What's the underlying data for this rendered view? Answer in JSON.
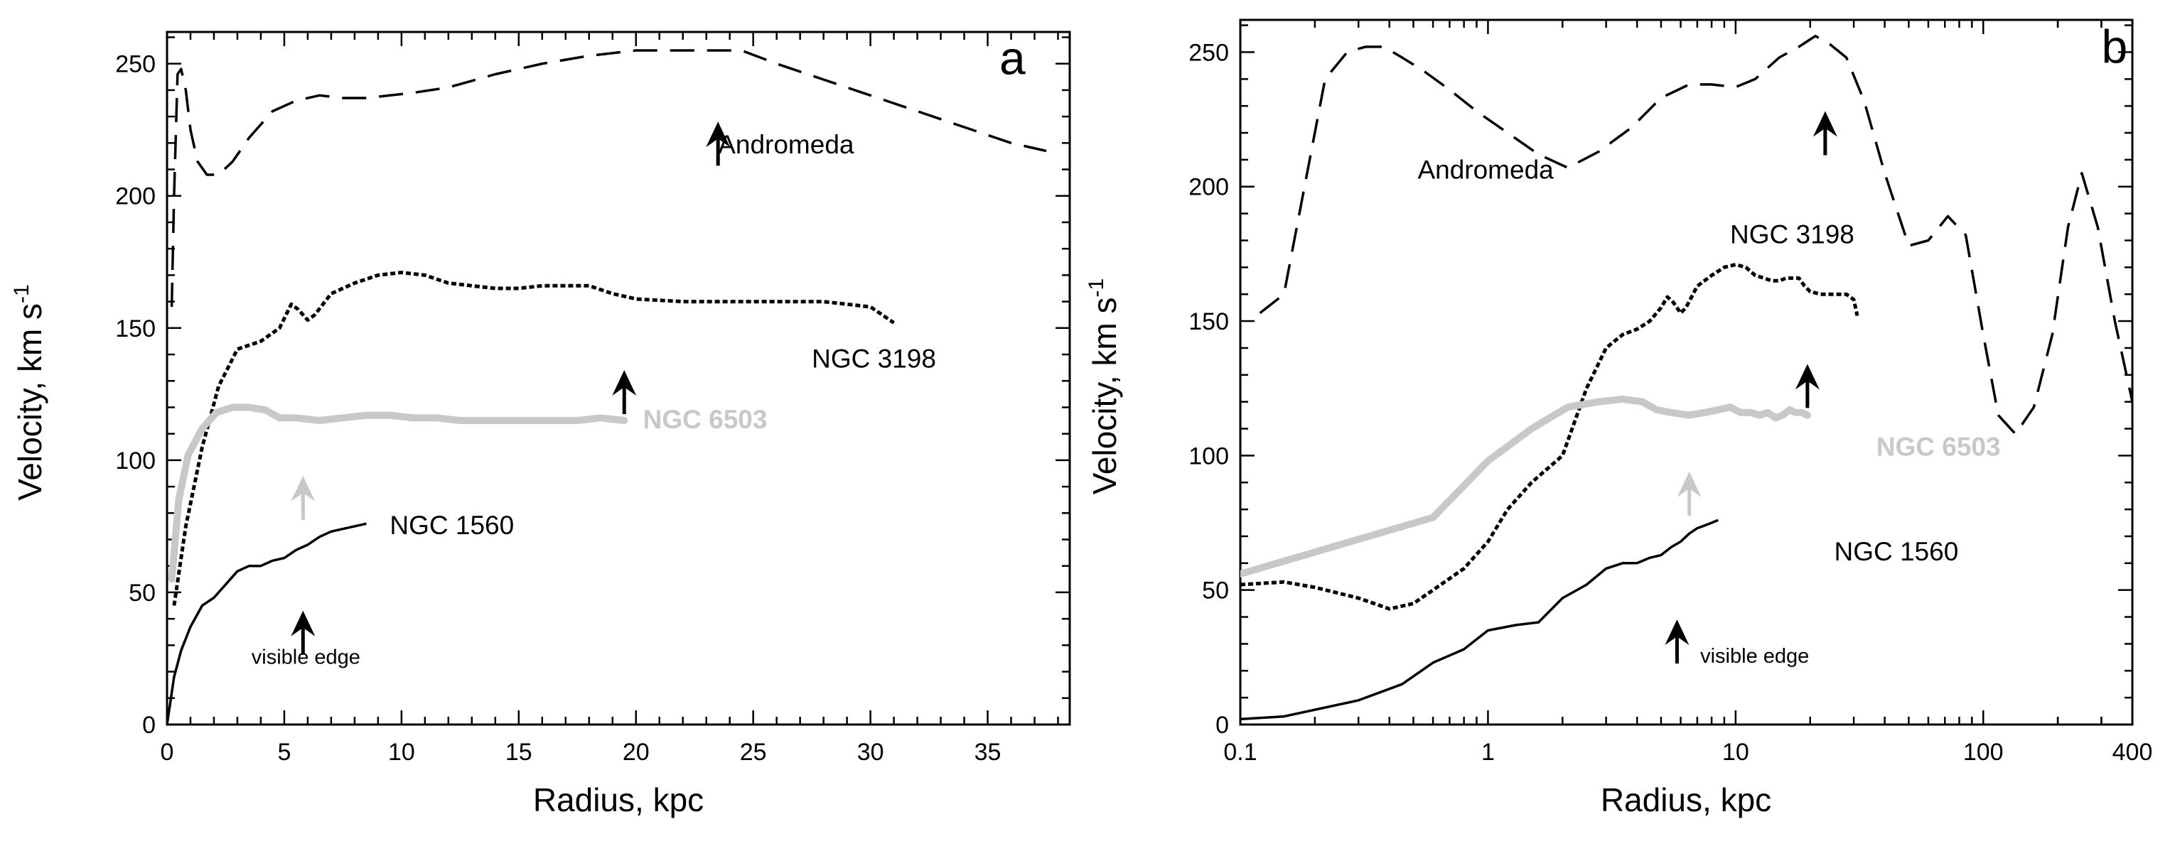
{
  "chart_data": [
    {
      "type": "line",
      "panel": "a",
      "xscale": "linear",
      "xlabel": "Radius, kpc",
      "ylabel": "Velocity, km s",
      "ylabel_sup": "-1",
      "xlim": [
        0,
        38.5
      ],
      "ylim": [
        0,
        262
      ],
      "x_ticks": [
        0,
        5,
        10,
        15,
        20,
        25,
        30,
        35
      ],
      "y_ticks": [
        0,
        50,
        100,
        150,
        200,
        250
      ],
      "series": [
        {
          "name": "Andromeda",
          "style": "dashed",
          "color": "#000000",
          "x": [
            0.2,
            0.3,
            0.45,
            0.6,
            0.8,
            1.0,
            1.3,
            1.7,
            2.2,
            2.8,
            3.5,
            4.5,
            5.5,
            6.5,
            7.5,
            8.5,
            9.5,
            10.5,
            12,
            14,
            16,
            18,
            20,
            21.5,
            23,
            24.5,
            26,
            28,
            30,
            32,
            34,
            36,
            37.5
          ],
          "y": [
            158,
            200,
            246,
            248,
            240,
            225,
            213,
            208,
            208,
            213,
            222,
            232,
            236,
            238,
            237,
            237,
            238,
            239,
            241,
            246,
            250,
            253,
            255,
            255,
            255,
            255,
            250,
            244,
            238,
            232,
            226,
            220,
            217
          ]
        },
        {
          "name": "NGC 3198",
          "style": "dotted",
          "color": "#000000",
          "x": [
            0.3,
            0.8,
            1.5,
            2.2,
            3.0,
            4.0,
            4.8,
            5.3,
            5.6,
            6.0,
            6.3,
            7.0,
            8.0,
            9.0,
            10,
            11,
            12,
            13,
            14,
            15,
            16,
            17,
            18,
            19,
            20,
            22,
            24,
            26,
            28,
            30,
            31
          ],
          "y": [
            45,
            75,
            105,
            128,
            142,
            145,
            150,
            159,
            157,
            153,
            155,
            163,
            167,
            170,
            171,
            170,
            167,
            166,
            165,
            165,
            166,
            166,
            166,
            163,
            161,
            160,
            160,
            160,
            160,
            158,
            152
          ]
        },
        {
          "name": "NGC 6503",
          "style": "solid-thick",
          "color": "#c8c8c8",
          "x": [
            0.2,
            0.5,
            0.9,
            1.5,
            2.1,
            2.8,
            3.5,
            4.2,
            4.8,
            5.5,
            6.5,
            7.5,
            8.5,
            9.5,
            10.5,
            11.5,
            12.5,
            13.5,
            14.5,
            15.5,
            16.5,
            17.5,
            18.5,
            19.5
          ],
          "y": [
            55,
            85,
            102,
            112,
            118,
            120,
            120,
            119,
            116,
            116,
            115,
            116,
            117,
            117,
            116,
            116,
            115,
            115,
            115,
            115,
            115,
            115,
            116,
            115
          ]
        },
        {
          "name": "NGC 1560",
          "style": "solid",
          "color": "#000000",
          "x": [
            0,
            0.3,
            0.6,
            1.0,
            1.5,
            2.0,
            2.5,
            3.0,
            3.5,
            4.0,
            4.5,
            5.0,
            5.5,
            6.0,
            6.5,
            7.0,
            7.5,
            8.0,
            8.5
          ],
          "y": [
            0,
            18,
            28,
            37,
            45,
            48,
            53,
            58,
            60,
            60,
            62,
            63,
            66,
            68,
            71,
            73,
            74,
            75,
            76
          ]
        }
      ],
      "arrows": [
        {
          "x": 23.5,
          "y": 227,
          "color": "#000000"
        },
        {
          "x": 19.5,
          "y": 133,
          "color": "#000000"
        },
        {
          "x": 5.8,
          "y": 93,
          "color": "#c8c8c8"
        },
        {
          "x": 5.8,
          "y": 42,
          "color": "#000000"
        }
      ],
      "annotations": [
        {
          "text": "Andromeda",
          "x": 23.5,
          "y": 216
        },
        {
          "text": "NGC 3198",
          "x": 27.5,
          "y": 135
        },
        {
          "text": "NGC 6503",
          "x": 20.3,
          "y": 112,
          "color": "#c8c8c8",
          "bold": true
        },
        {
          "text": "NGC 1560",
          "x": 9.5,
          "y": 72
        },
        {
          "text": "visible edge",
          "x": 3.6,
          "y": 23,
          "small": true
        },
        {
          "text": "a",
          "x": 35.5,
          "y": 246,
          "letter": true
        }
      ]
    },
    {
      "type": "line",
      "panel": "b",
      "xscale": "log",
      "xlabel": "Radius, kpc",
      "ylabel": "Velocity, km s",
      "ylabel_sup": "-1",
      "xlim": [
        0.1,
        400
      ],
      "ylim": [
        0,
        262
      ],
      "x_ticks": [
        0.1,
        1,
        10,
        100,
        400
      ],
      "x_tick_labels": [
        "0.1",
        "1",
        "10",
        "100",
        "400"
      ],
      "y_ticks": [
        0,
        50,
        100,
        150,
        200,
        250
      ],
      "series": [
        {
          "name": "Andromeda",
          "style": "dashed",
          "color": "#000000",
          "x": [
            0.12,
            0.15,
            0.18,
            0.22,
            0.27,
            0.32,
            0.38,
            0.45,
            0.55,
            0.7,
            0.9,
            1.2,
            1.6,
            2.1,
            2.8,
            3.8,
            5,
            6.5,
            8,
            10,
            12,
            15,
            18,
            21,
            24,
            28,
            33,
            40,
            50,
            60,
            72,
            85,
            100,
            115,
            135,
            160,
            190,
            220,
            250,
            290,
            340,
            400
          ],
          "y": [
            153,
            160,
            198,
            240,
            250,
            252,
            252,
            248,
            243,
            236,
            228,
            220,
            212,
            207,
            213,
            222,
            233,
            238,
            238,
            237,
            240,
            248,
            252,
            256,
            253,
            248,
            232,
            205,
            178,
            180,
            189,
            182,
            145,
            115,
            108,
            118,
            145,
            185,
            205,
            185,
            150,
            120
          ]
        },
        {
          "name": "NGC 3198",
          "style": "dotted",
          "color": "#000000",
          "x": [
            0.1,
            0.15,
            0.2,
            0.3,
            0.4,
            0.5,
            0.6,
            0.8,
            1.0,
            1.2,
            1.5,
            2.0,
            2.5,
            3.0,
            3.5,
            4.0,
            4.5,
            5.0,
            5.3,
            5.6,
            6.0,
            6.3,
            7,
            8,
            9,
            10,
            11,
            12,
            13,
            14,
            15,
            16,
            17,
            18,
            19,
            20,
            22,
            24,
            26,
            28,
            30,
            31
          ],
          "y": [
            52,
            53,
            51,
            47,
            43,
            45,
            50,
            58,
            68,
            80,
            90,
            100,
            125,
            140,
            145,
            147,
            150,
            155,
            159,
            157,
            153,
            155,
            163,
            167,
            170,
            171,
            170,
            167,
            166,
            165,
            165,
            166,
            166,
            166,
            163,
            161,
            160,
            160,
            160,
            160,
            158,
            152
          ]
        },
        {
          "name": "NGC 6503",
          "style": "solid-thick",
          "color": "#c8c8c8",
          "x": [
            0.1,
            0.6,
            1.0,
            1.5,
            2.1,
            2.8,
            3.5,
            4.2,
            4.8,
            5.5,
            6.5,
            7.5,
            8.5,
            9.5,
            10.5,
            11.5,
            12.5,
            13.5,
            14.5,
            15.5,
            16.5,
            17.5,
            18.5,
            19.5
          ],
          "y": [
            56,
            77,
            98,
            110,
            118,
            120,
            121,
            120,
            117,
            116,
            115,
            116,
            117,
            118,
            116,
            116,
            115,
            116,
            114,
            115,
            117,
            116,
            116,
            115
          ]
        },
        {
          "name": "NGC 1560",
          "style": "solid",
          "color": "#000000",
          "x": [
            0.1,
            0.15,
            0.3,
            0.45,
            0.6,
            0.8,
            1.0,
            1.3,
            1.6,
            2.0,
            2.5,
            3.0,
            3.5,
            4.0,
            4.5,
            5.0,
            5.5,
            6.0,
            6.5,
            7.0,
            7.5,
            8.0,
            8.5
          ],
          "y": [
            2,
            3,
            9,
            15,
            23,
            28,
            35,
            37,
            38,
            47,
            52,
            58,
            60,
            60,
            62,
            63,
            66,
            68,
            71,
            73,
            74,
            75,
            76
          ]
        }
      ],
      "arrows": [
        {
          "x": 23,
          "y": 227,
          "color": "#000000"
        },
        {
          "x": 19.5,
          "y": 133,
          "color": "#000000"
        },
        {
          "x": 6.5,
          "y": 93,
          "color": "#c8c8c8"
        },
        {
          "x": 5.8,
          "y": 38,
          "color": "#000000"
        }
      ],
      "annotations": [
        {
          "text": "Andromeda",
          "x": 0.52,
          "y": 203
        },
        {
          "text": "NGC 3198",
          "x": 9.5,
          "y": 179
        },
        {
          "text": "NGC 6503",
          "x": 37,
          "y": 100,
          "color": "#c8c8c8",
          "bold": true
        },
        {
          "text": "NGC 1560",
          "x": 25,
          "y": 61
        },
        {
          "text": "visible edge",
          "x": 7.2,
          "y": 23,
          "small": true
        },
        {
          "text": "b",
          "x": 300,
          "y": 246,
          "letter": true
        }
      ]
    }
  ]
}
